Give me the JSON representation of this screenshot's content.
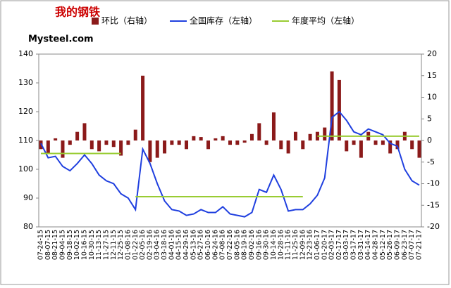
{
  "logo": {
    "cn": "我的钢铁",
    "en": "Mysteel.com"
  },
  "chart_data": {
    "type": "bar-line",
    "categories": [
      "07-24-15",
      "08-07-15",
      "08-21-15",
      "09-04-15",
      "09-18-15",
      "10-02-15",
      "10-16-15",
      "10-30-15",
      "11-13-15",
      "11-27-15",
      "12-11-15",
      "12-25-15",
      "01-08-16",
      "01-22-16",
      "02-05-16",
      "02-19-16",
      "03-04-16",
      "03-18-16",
      "04-01-16",
      "04-15-16",
      "04-29-16",
      "05-13-16",
      "05-27-16",
      "06-10-16",
      "06-24-16",
      "07-08-16",
      "07-22-16",
      "08-05-16",
      "08-19-16",
      "09-02-16",
      "09-16-16",
      "09-30-16",
      "10-14-16",
      "10-28-16",
      "11-11-16",
      "11-25-16",
      "12-09-16",
      "12-23-16",
      "01-06-17",
      "01-20-17",
      "02-03-17",
      "02-17-17",
      "03-03-17",
      "03-17-17",
      "03-31-17",
      "04-14-17",
      "04-28-17",
      "05-12-17",
      "05-26-17",
      "06-09-17",
      "06-23-17",
      "07-07-17",
      "07-21-17"
    ],
    "series": [
      {
        "name": "环比（右轴）",
        "type": "bar",
        "axis": "y2",
        "color": "#8b1a1a",
        "values": [
          -2,
          -3,
          0.5,
          -4,
          -1,
          2,
          4,
          -2,
          -2.5,
          -1,
          -1.5,
          -3.5,
          -1,
          2.5,
          15,
          -5,
          -4,
          -3,
          -1,
          -1,
          -2,
          1,
          0.8,
          -2,
          0.5,
          1,
          -1,
          -1,
          -0.5,
          1.5,
          4,
          -1,
          6.5,
          -2,
          -3,
          2,
          -2,
          1.5,
          2,
          3,
          16,
          14,
          -2.5,
          -1,
          -4,
          2,
          -1,
          -1,
          -3,
          -2,
          2,
          -2,
          -4
        ]
      },
      {
        "name": "全国库存（左轴）",
        "type": "line",
        "color": "#1f3fdf",
        "values": [
          109,
          104,
          104.5,
          101,
          99.5,
          102,
          105,
          102,
          98,
          96,
          95,
          91.5,
          90,
          86,
          107,
          102,
          95,
          89,
          86,
          85.5,
          84,
          84.5,
          86,
          85,
          85,
          87,
          84.5,
          84,
          83.5,
          85,
          93,
          92,
          98,
          93,
          85.5,
          86,
          86,
          88,
          91,
          97,
          118,
          120,
          117,
          113,
          112,
          114,
          113,
          112,
          109,
          108,
          100,
          96,
          94.5
        ]
      },
      {
        "name": "年度平均（左轴）",
        "type": "line",
        "color": "#99cc33",
        "values": [
          105.5,
          105.5,
          105.5,
          105.5,
          105.5,
          105.5,
          105.5,
          105.5,
          105.5,
          105.5,
          105.5,
          105.5,
          null,
          90.5,
          90.5,
          90.5,
          90.5,
          90.5,
          90.5,
          90.5,
          90.5,
          90.5,
          90.5,
          90.5,
          90.5,
          90.5,
          90.5,
          90.5,
          90.5,
          90.5,
          90.5,
          90.5,
          90.5,
          90.5,
          90.5,
          90.5,
          90.5,
          null,
          111.5,
          111.5,
          111.5,
          111.5,
          111.5,
          111.5,
          111.5,
          111.5,
          111.5,
          111.5,
          111.5,
          111.5,
          111.5,
          111.5,
          111.5
        ]
      }
    ],
    "ylim": [
      80,
      140
    ],
    "yticks": [
      80,
      90,
      100,
      110,
      120,
      130,
      140
    ],
    "y2lim": [
      -20,
      20
    ],
    "y2ticks": [
      -20,
      -15,
      -10,
      -5,
      0,
      5,
      10,
      15,
      20
    ]
  }
}
